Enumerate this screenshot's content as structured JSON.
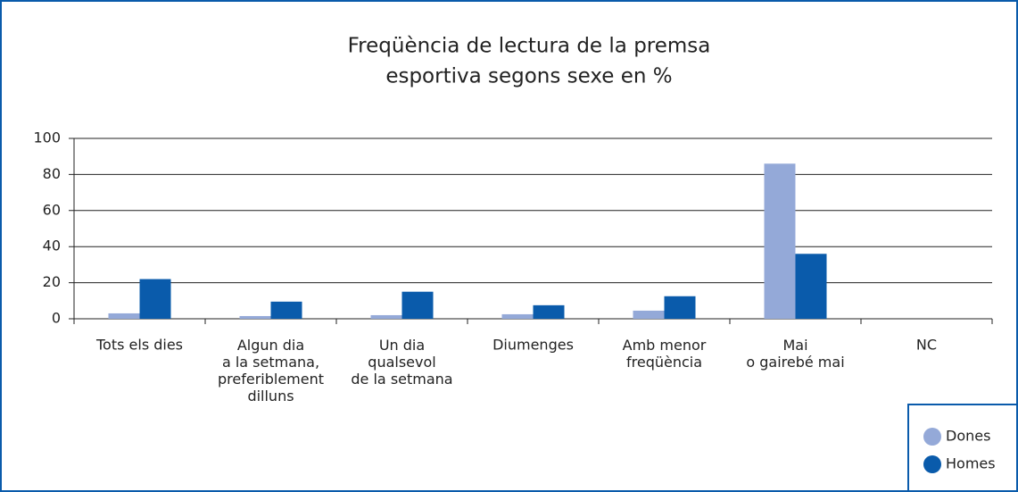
{
  "chart_data": {
    "type": "bar",
    "title": [
      "Freqüència de lectura de la premsa",
      "esportiva segons sexe en %"
    ],
    "categories": [
      "Tots els dies",
      "Algun dia\na la setmana,\npreferiblement\ndilluns",
      "Un dia\nqualsevol\nde la setmana",
      "Diumenges",
      "Amb menor\nfreqüència",
      "Mai\no gairebé mai",
      "NC"
    ],
    "series": [
      {
        "name": "Dones",
        "color": "#94a9d8",
        "values": [
          3,
          1.5,
          2,
          2.5,
          4.5,
          86,
          0
        ]
      },
      {
        "name": "Homes",
        "color": "#0a5bab",
        "values": [
          22,
          9.5,
          15,
          7.5,
          12.5,
          36,
          0
        ]
      }
    ],
    "ylim": [
      0,
      100
    ],
    "yticks": [
      0,
      20,
      40,
      60,
      80,
      100
    ],
    "grid": true,
    "legend": "bottom-right"
  }
}
